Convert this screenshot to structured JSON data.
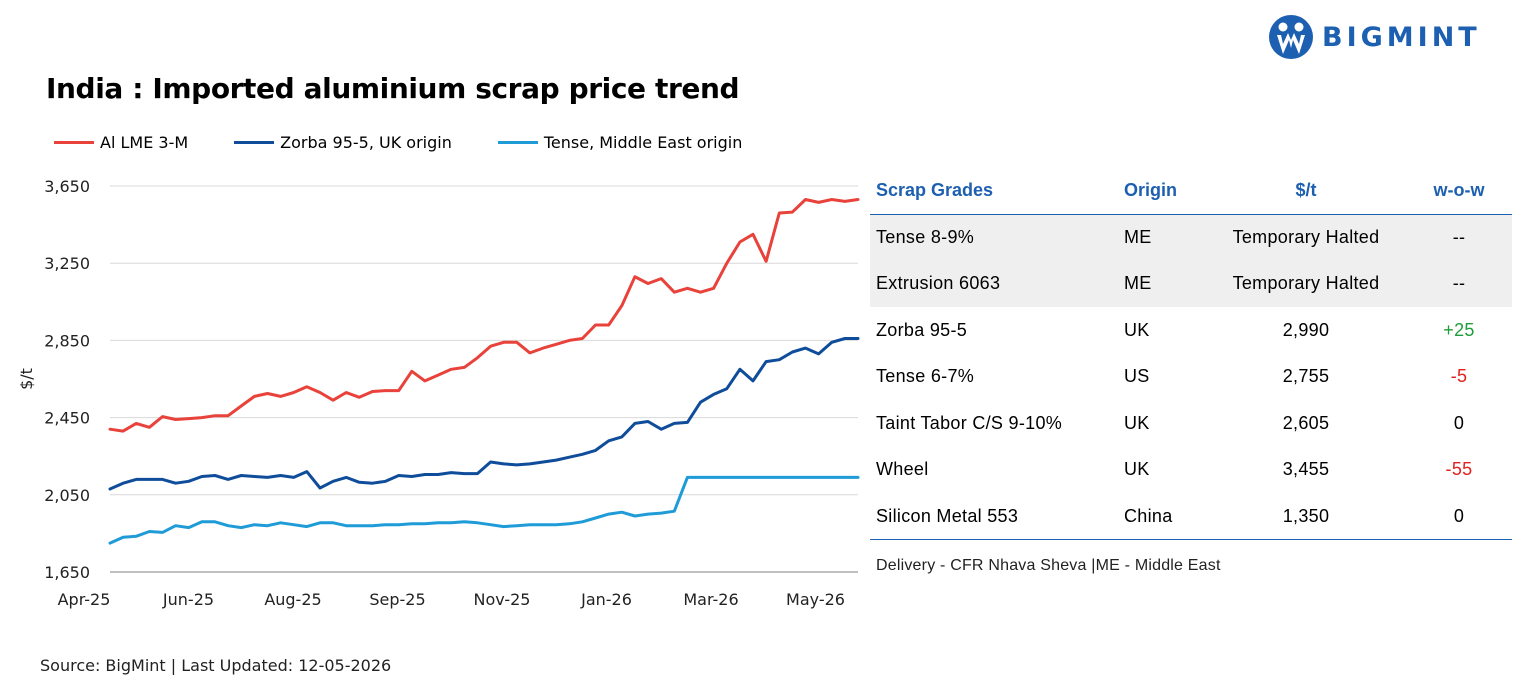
{
  "brand": {
    "name": "BIGMINT"
  },
  "title": "India : Imported aluminium scrap price trend",
  "colors": {
    "lme": "#e8423a",
    "zorba": "#0f4d9b",
    "tense": "#1f9bd7",
    "accent": "#1d5fb0",
    "positive": "#1e9e3a",
    "negative": "#e0221e"
  },
  "chart_data": {
    "type": "line",
    "title": "India : Imported aluminium scrap price trend",
    "ylabel": "$/t",
    "xlabel": "",
    "ylim": [
      1650,
      3650
    ],
    "yticks": [
      "3,650",
      "3,250",
      "2,850",
      "2,450",
      "2,050",
      "1,650"
    ],
    "ytick_values": [
      3650,
      3250,
      2850,
      2450,
      2050,
      1650
    ],
    "xticks": [
      "Apr-25",
      "Jun-25",
      "Aug-25",
      "Sep-25",
      "Nov-25",
      "Jan-26",
      "Mar-26",
      "May-26"
    ],
    "grid": true,
    "legend_position": "top-left",
    "series": [
      {
        "name": "Al LME 3-M",
        "color": "#e8423a",
        "values": [
          2390,
          2380,
          2420,
          2400,
          2455,
          2440,
          2445,
          2450,
          2460,
          2460,
          2510,
          2560,
          2575,
          2560,
          2580,
          2610,
          2580,
          2540,
          2580,
          2555,
          2585,
          2590,
          2590,
          2690,
          2640,
          2670,
          2700,
          2710,
          2760,
          2820,
          2840,
          2840,
          2785,
          2810,
          2830,
          2850,
          2860,
          2930,
          2930,
          3030,
          3180,
          3145,
          3170,
          3100,
          3120,
          3100,
          3120,
          3250,
          3360,
          3400,
          3260,
          3510,
          3515,
          3580,
          3565,
          3580,
          3570,
          3580
        ]
      },
      {
        "name": "Zorba 95-5, UK origin",
        "color": "#0f4d9b",
        "values": [
          2080,
          2110,
          2130,
          2130,
          2130,
          2110,
          2120,
          2145,
          2150,
          2130,
          2150,
          2145,
          2140,
          2150,
          2140,
          2170,
          2085,
          2120,
          2140,
          2115,
          2110,
          2120,
          2150,
          2145,
          2155,
          2155,
          2165,
          2160,
          2160,
          2220,
          2210,
          2205,
          2210,
          2220,
          2230,
          2245,
          2260,
          2280,
          2330,
          2350,
          2420,
          2430,
          2390,
          2420,
          2425,
          2530,
          2570,
          2600,
          2700,
          2640,
          2740,
          2750,
          2790,
          2810,
          2780,
          2840,
          2860,
          2860
        ]
      },
      {
        "name": "Tense, Middle East origin",
        "color": "#1f9bd7",
        "values": [
          1800,
          1830,
          1835,
          1860,
          1855,
          1890,
          1880,
          1910,
          1910,
          1890,
          1880,
          1895,
          1890,
          1905,
          1895,
          1885,
          1905,
          1905,
          1890,
          1890,
          1890,
          1895,
          1895,
          1900,
          1900,
          1905,
          1905,
          1910,
          1905,
          1895,
          1885,
          1890,
          1895,
          1895,
          1895,
          1900,
          1910,
          1930,
          1950,
          1960,
          1940,
          1950,
          1955,
          1965,
          2140,
          2140,
          2140,
          2140,
          2140,
          2140,
          2140,
          2140,
          2140,
          2140,
          2140,
          2140,
          2140,
          2140
        ]
      }
    ]
  },
  "table": {
    "headers": {
      "grade": "Scrap Grades",
      "origin": "Origin",
      "price": "$/t",
      "wow": "w-o-w"
    },
    "rows": [
      {
        "grade": "Tense 8-9%",
        "origin": "ME",
        "price": "Temporary Halted",
        "wow": "--",
        "trend": "neutral"
      },
      {
        "grade": "Extrusion 6063",
        "origin": "ME",
        "price": "Temporary Halted",
        "wow": "--",
        "trend": "neutral"
      },
      {
        "grade": "Zorba 95-5",
        "origin": "UK",
        "price": "2,990",
        "wow": "+25",
        "trend": "positive"
      },
      {
        "grade": "Tense 6-7%",
        "origin": "US",
        "price": "2,755",
        "wow": "-5",
        "trend": "negative"
      },
      {
        "grade": "Taint Tabor C/S 9-10%",
        "origin": "UK",
        "price": "2,605",
        "wow": "0",
        "trend": "neutral"
      },
      {
        "grade": "Wheel",
        "origin": "UK",
        "price": "3,455",
        "wow": "-55",
        "trend": "negative"
      },
      {
        "grade": "Silicon Metal 553",
        "origin": "China",
        "price": "1,350",
        "wow": "0",
        "trend": "neutral"
      }
    ],
    "footnote": "Delivery - CFR Nhava Sheva |ME - Middle East"
  },
  "source": "Source: BigMint | Last Updated: 12-05-2026"
}
